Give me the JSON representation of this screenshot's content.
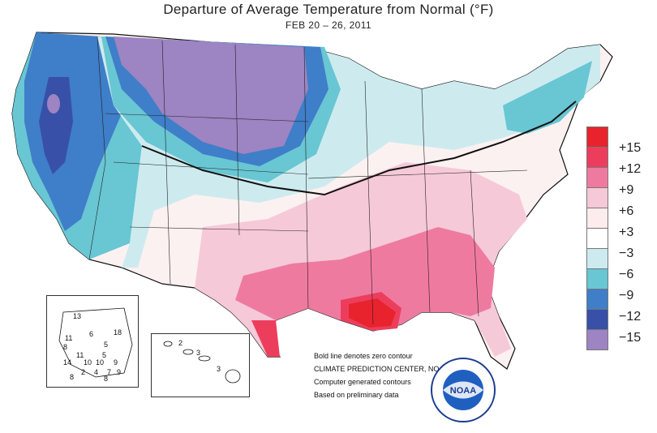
{
  "title": "Departure of Average Temperature from Normal (°F)",
  "subtitle": "FEB 20 – 26, 2011",
  "legend": [
    {
      "label": "+15",
      "color": "#e8232e"
    },
    {
      "label": "+12",
      "color": "#ec3e5c"
    },
    {
      "label": "+9",
      "color": "#ef7aa0"
    },
    {
      "label": "+6",
      "color": "#f6c9d8"
    },
    {
      "label": "+3",
      "color": "#fcecec"
    },
    {
      "label": "−3",
      "color": "#ffffff"
    },
    {
      "label": "−6",
      "color": "#cdebef"
    },
    {
      "label": "−9",
      "color": "#69c6d3"
    },
    {
      "label": "−12",
      "color": "#3f7ec8"
    },
    {
      "label": "−15",
      "color": "#3850a8"
    },
    {
      "label": "",
      "color": "#9d84c2"
    }
  ],
  "notes": [
    "Bold line denotes zero contour",
    "CLIMATE PREDICTION CENTER, NOAA",
    "Computer generated contours",
    "Based on preliminary data"
  ],
  "logo_text": "NOAA",
  "alaska_values": [
    "13",
    "18",
    "11",
    "6",
    "8",
    "5",
    "11",
    "14",
    "10",
    "9",
    "10",
    "8",
    "2",
    "4",
    "5",
    "7",
    "9",
    "8"
  ],
  "hawaii_values": [
    "2",
    "3",
    "3"
  ]
}
